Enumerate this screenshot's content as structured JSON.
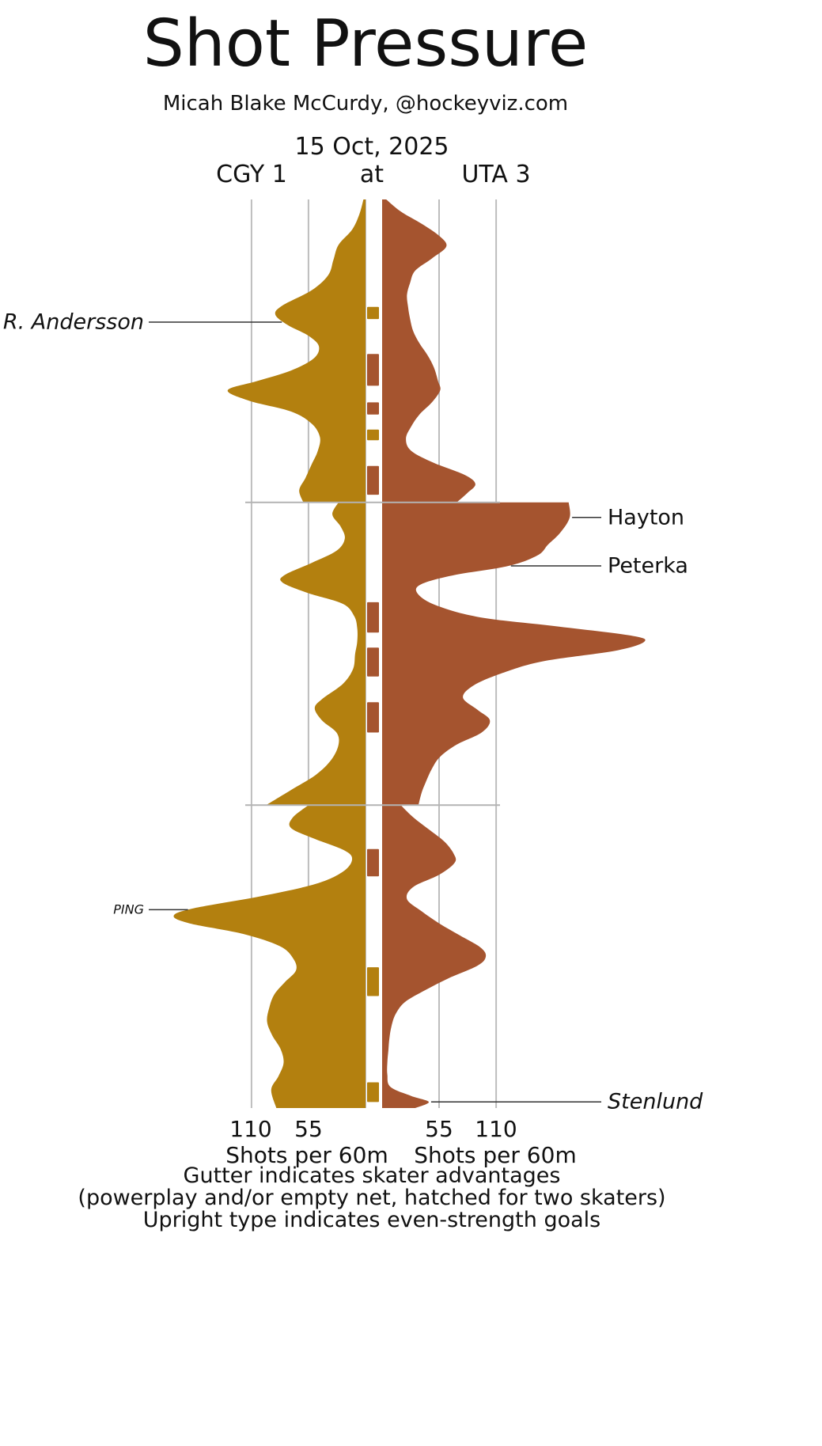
{
  "title": "Shot Pressure",
  "subtitle": "Micah Blake McCurdy, @hockeyviz.com",
  "game": {
    "date": "15 Oct, 2025",
    "away": "CGY 1",
    "at": "at",
    "home": "UTA 3"
  },
  "axis": {
    "left_ticks": [
      "110",
      "55"
    ],
    "right_ticks": [
      "55",
      "110"
    ],
    "left_axis_label": "Shots per 60m",
    "right_axis_label": "Shots per 60m"
  },
  "footer": {
    "line1": "Gutter indicates skater advantages",
    "line2": "(powerplay and/or empty net, hatched for two skaters)",
    "line3": "Upright type indicates even-strength goals"
  },
  "colors": {
    "CGY": "#b3800f",
    "UTA": "#a5542f",
    "grid": "#bdbdbd",
    "separator": "#b3b3b3",
    "annotation_line": "#333333"
  },
  "chart_data": {
    "type": "area",
    "orientation": "mirrored-density-vs-time",
    "time_axis": {
      "start_min": 0,
      "end_min": 60,
      "period_breaks_min": [
        20,
        40
      ]
    },
    "value_axis": {
      "unit": "shots per 60m",
      "ticks": [
        55,
        110
      ],
      "max": 260
    },
    "series": [
      {
        "name": "CGY",
        "side": "left",
        "periods": [
          [
            [
              0,
              2
            ],
            [
              1,
              6
            ],
            [
              2,
              13
            ],
            [
              3,
              26
            ],
            [
              4,
              31
            ],
            [
              5,
              36
            ],
            [
              6,
              52
            ],
            [
              7,
              80
            ],
            [
              7.6,
              87
            ],
            [
              8.3,
              75
            ],
            [
              9,
              55
            ],
            [
              9.7,
              45
            ],
            [
              10.5,
              50
            ],
            [
              11.3,
              72
            ],
            [
              12,
              105
            ],
            [
              12.6,
              133
            ],
            [
              13.3,
              112
            ],
            [
              14,
              72
            ],
            [
              14.8,
              52
            ],
            [
              15.7,
              44
            ],
            [
              16.6,
              46
            ],
            [
              17.5,
              52
            ],
            [
              18.4,
              58
            ],
            [
              19.2,
              64
            ],
            [
              20,
              60
            ]
          ],
          [
            [
              20,
              26
            ],
            [
              20.8,
              32
            ],
            [
              21.6,
              24
            ],
            [
              22.4,
              20
            ],
            [
              23.2,
              28
            ],
            [
              24,
              52
            ],
            [
              24.8,
              78
            ],
            [
              25.3,
              80
            ],
            [
              26,
              55
            ],
            [
              26.7,
              22
            ],
            [
              27.5,
              11
            ],
            [
              28.3,
              8
            ],
            [
              29.2,
              8
            ],
            [
              30,
              10
            ],
            [
              31,
              12
            ],
            [
              32,
              22
            ],
            [
              33,
              42
            ],
            [
              33.6,
              49
            ],
            [
              34.4,
              42
            ],
            [
              35.2,
              28
            ],
            [
              36,
              26
            ],
            [
              37,
              33
            ],
            [
              38,
              48
            ],
            [
              39,
              72
            ],
            [
              40,
              96
            ]
          ],
          [
            [
              40,
              55
            ],
            [
              40.8,
              70
            ],
            [
              41.5,
              72
            ],
            [
              42.2,
              50
            ],
            [
              43,
              20
            ],
            [
              43.6,
              13
            ],
            [
              44.4,
              22
            ],
            [
              45.2,
              48
            ],
            [
              46,
              100
            ],
            [
              46.8,
              165
            ],
            [
              47.3,
              185
            ],
            [
              47.8,
              170
            ],
            [
              48.5,
              118
            ],
            [
              49.3,
              83
            ],
            [
              50.1,
              70
            ],
            [
              50.9,
              67
            ],
            [
              51.7,
              78
            ],
            [
              52.5,
              88
            ],
            [
              53.4,
              93
            ],
            [
              54.3,
              95
            ],
            [
              55.2,
              90
            ],
            [
              56.1,
              82
            ],
            [
              57,
              79
            ],
            [
              57.9,
              84
            ],
            [
              58.8,
              91
            ],
            [
              60,
              86
            ]
          ]
        ]
      },
      {
        "name": "UTA",
        "side": "right",
        "periods": [
          [
            [
              0,
              4
            ],
            [
              0.8,
              18
            ],
            [
              1.6,
              38
            ],
            [
              2.4,
              55
            ],
            [
              3.1,
              62
            ],
            [
              3.9,
              48
            ],
            [
              4.7,
              32
            ],
            [
              5.5,
              27
            ],
            [
              6.3,
              24
            ],
            [
              7.1,
              25
            ],
            [
              7.9,
              27
            ],
            [
              8.7,
              30
            ],
            [
              9.5,
              36
            ],
            [
              10.3,
              44
            ],
            [
              11.1,
              50
            ],
            [
              12,
              54
            ],
            [
              12.6,
              56
            ],
            [
              13.4,
              48
            ],
            [
              14.2,
              36
            ],
            [
              15,
              28
            ],
            [
              15.8,
              23
            ],
            [
              16.6,
              28
            ],
            [
              17.4,
              50
            ],
            [
              18.2,
              80
            ],
            [
              18.8,
              90
            ],
            [
              19.4,
              82
            ],
            [
              20,
              72
            ]
          ],
          [
            [
              20,
              180
            ],
            [
              21,
              181
            ],
            [
              22,
              172
            ],
            [
              22.8,
              160
            ],
            [
              23.5,
              150
            ],
            [
              24.2,
              122
            ],
            [
              24.8,
              70
            ],
            [
              25.4,
              38
            ],
            [
              26,
              34
            ],
            [
              26.8,
              52
            ],
            [
              27.6,
              95
            ],
            [
              28.2,
              170
            ],
            [
              28.8,
              240
            ],
            [
              29.2,
              253
            ],
            [
              29.8,
              225
            ],
            [
              30.5,
              155
            ],
            [
              31.3,
              115
            ],
            [
              32.1,
              88
            ],
            [
              32.9,
              78
            ],
            [
              33.7,
              92
            ],
            [
              34.4,
              104
            ],
            [
              35.2,
              96
            ],
            [
              36,
              72
            ],
            [
              36.8,
              56
            ],
            [
              37.6,
              48
            ],
            [
              38.5,
              42
            ],
            [
              39.2,
              38
            ],
            [
              40,
              35
            ]
          ],
          [
            [
              40,
              18
            ],
            [
              40.8,
              30
            ],
            [
              41.6,
              45
            ],
            [
              42.4,
              60
            ],
            [
              43.2,
              69
            ],
            [
              43.8,
              70
            ],
            [
              44.6,
              55
            ],
            [
              45.4,
              30
            ],
            [
              46.2,
              24
            ],
            [
              47,
              38
            ],
            [
              47.8,
              55
            ],
            [
              48.6,
              75
            ],
            [
              49.4,
              95
            ],
            [
              50,
              100
            ],
            [
              50.6,
              92
            ],
            [
              51.4,
              65
            ],
            [
              52.2,
              42
            ],
            [
              53,
              22
            ],
            [
              53.8,
              13
            ],
            [
              54.6,
              9
            ],
            [
              55.4,
              7
            ],
            [
              56.2,
              6
            ],
            [
              57,
              5
            ],
            [
              57.8,
              5
            ],
            [
              58.6,
              8
            ],
            [
              59.2,
              28
            ],
            [
              59.6,
              45
            ],
            [
              60,
              32
            ]
          ]
        ]
      }
    ],
    "annotations": [
      {
        "label": "R. Andersson",
        "team": "CGY",
        "side": "left",
        "t": 8.1,
        "italic": true,
        "small": false
      },
      {
        "label": "Hayton",
        "team": "UTA",
        "side": "right",
        "t": 21.0,
        "italic": false,
        "small": false
      },
      {
        "label": "Peterka",
        "team": "UTA",
        "side": "right",
        "t": 24.2,
        "italic": false,
        "small": false
      },
      {
        "label": "PING",
        "team": "CGY",
        "side": "left",
        "t": 46.9,
        "italic": true,
        "small": true
      },
      {
        "label": "Stenlund",
        "team": "UTA",
        "side": "right",
        "t": 59.6,
        "italic": true,
        "small": false
      }
    ],
    "gutter_marks": [
      {
        "team": "CGY",
        "start": 7.1,
        "end": 7.9
      },
      {
        "team": "UTA",
        "start": 10.2,
        "end": 12.3
      },
      {
        "team": "UTA",
        "start": 13.4,
        "end": 14.2
      },
      {
        "team": "CGY",
        "start": 15.2,
        "end": 15.9
      },
      {
        "team": "UTA",
        "start": 17.6,
        "end": 19.5
      },
      {
        "team": "UTA",
        "start": 26.6,
        "end": 28.6
      },
      {
        "team": "UTA",
        "start": 29.6,
        "end": 31.5
      },
      {
        "team": "UTA",
        "start": 33.2,
        "end": 35.2
      },
      {
        "team": "UTA",
        "start": 42.9,
        "end": 44.7
      },
      {
        "team": "CGY",
        "start": 50.7,
        "end": 52.6
      },
      {
        "team": "CGY",
        "start": 58.3,
        "end": 59.6
      }
    ]
  }
}
